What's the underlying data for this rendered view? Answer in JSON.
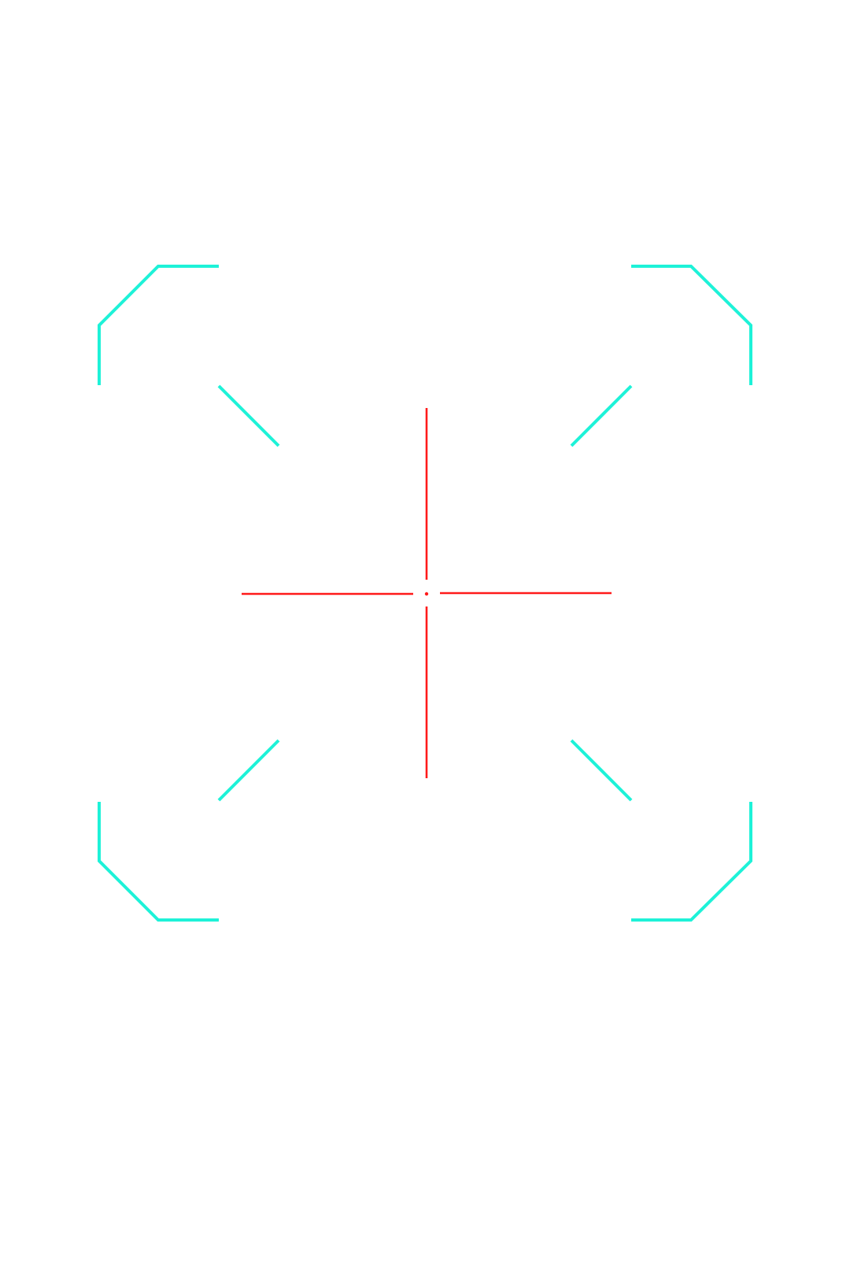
{
  "overlay": {
    "frame_color": "#1EF2D8",
    "reticle_color": "#FF1A1A",
    "background_color": "#FFFFFF",
    "frame_icon": "scan-frame-icon",
    "reticle_icon": "crosshair-icon"
  }
}
